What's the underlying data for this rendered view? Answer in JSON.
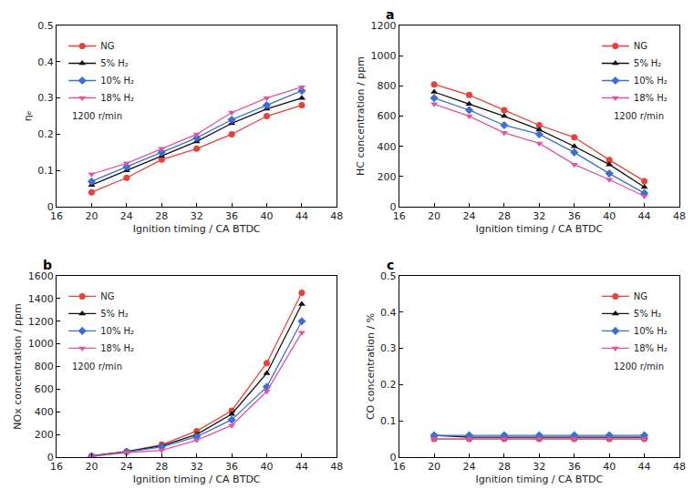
{
  "chart_data": [
    {
      "type": "line",
      "xlabel": "Ignition timing / CA BTDC",
      "ylabel": "ηₑ",
      "annotations": [
        "1200 r/min"
      ],
      "x": [
        20,
        24,
        28,
        32,
        36,
        40,
        44
      ],
      "xlim": [
        16,
        48
      ],
      "xticks": [
        16,
        20,
        24,
        28,
        32,
        36,
        40,
        44,
        48
      ],
      "ylim": [
        0,
        0.5
      ],
      "yticks": [
        0,
        0.1,
        0.2,
        0.3,
        0.4,
        0.5
      ],
      "grid": false,
      "legend": "top-left",
      "series": [
        {
          "name": "NG",
          "color": "#e8413a",
          "marker": "circle",
          "line_style": "solid",
          "values": [
            0.04,
            0.08,
            0.13,
            0.16,
            0.2,
            0.25,
            0.28
          ]
        },
        {
          "name": "5% H₂",
          "color": "#111111",
          "marker": "triangle-up",
          "line_style": "solid",
          "values": [
            0.06,
            0.1,
            0.14,
            0.18,
            0.23,
            0.27,
            0.3
          ]
        },
        {
          "name": "10% H₂",
          "color": "#3a6fd8",
          "marker": "diamond",
          "line_style": "solid",
          "values": [
            0.07,
            0.11,
            0.15,
            0.19,
            0.24,
            0.28,
            0.32
          ]
        },
        {
          "name": "18% H₂",
          "color": "#e055a0",
          "marker": "triangle-down",
          "line_style": "solid",
          "values": [
            0.09,
            0.12,
            0.16,
            0.2,
            0.26,
            0.3,
            0.33
          ]
        }
      ]
    },
    {
      "type": "line",
      "title": "a",
      "xlabel": "Ignition timing / CA BTDC",
      "ylabel": "HC concentration / ppm",
      "annotations": [
        "1200 r/min"
      ],
      "x": [
        20,
        24,
        28,
        32,
        36,
        40,
        44
      ],
      "xlim": [
        16,
        48
      ],
      "xticks": [
        16,
        20,
        24,
        28,
        32,
        36,
        40,
        44,
        48
      ],
      "ylim": [
        0,
        1200
      ],
      "yticks": [
        0,
        200,
        400,
        600,
        800,
        1000,
        1200
      ],
      "grid": false,
      "legend": "top-right",
      "series": [
        {
          "name": "NG",
          "color": "#e8413a",
          "marker": "circle",
          "line_style": "solid",
          "values": [
            810,
            740,
            640,
            540,
            460,
            310,
            170
          ]
        },
        {
          "name": "5% H₂",
          "color": "#111111",
          "marker": "triangle-up",
          "line_style": "solid",
          "values": [
            760,
            680,
            600,
            510,
            400,
            280,
            130
          ]
        },
        {
          "name": "10% H₂",
          "color": "#3a6fd8",
          "marker": "diamond",
          "line_style": "solid",
          "values": [
            720,
            640,
            540,
            480,
            360,
            220,
            90
          ]
        },
        {
          "name": "18% H₂",
          "color": "#e055a0",
          "marker": "triangle-down",
          "line_style": "solid",
          "values": [
            680,
            600,
            490,
            420,
            280,
            180,
            70
          ]
        }
      ]
    },
    {
      "type": "line",
      "title": "b",
      "xlabel": "Ignition timing / CA BTDC",
      "ylabel": "NOx concentration / ppm",
      "annotations": [
        "1200 r/min"
      ],
      "x": [
        20,
        24,
        28,
        32,
        36,
        40,
        44
      ],
      "xlim": [
        16,
        48
      ],
      "xticks": [
        16,
        20,
        24,
        28,
        32,
        36,
        40,
        44,
        48
      ],
      "ylim": [
        0,
        1600
      ],
      "yticks": [
        0,
        200,
        400,
        600,
        800,
        1000,
        1200,
        1400,
        1600
      ],
      "grid": false,
      "legend": "top-left",
      "series": [
        {
          "name": "NG",
          "color": "#e8413a",
          "marker": "circle",
          "line_style": "solid",
          "values": [
            10,
            50,
            110,
            230,
            410,
            830,
            1450
          ]
        },
        {
          "name": "5% H₂",
          "color": "#111111",
          "marker": "triangle-up",
          "line_style": "solid",
          "values": [
            10,
            50,
            100,
            200,
            380,
            740,
            1350
          ]
        },
        {
          "name": "10% H₂",
          "color": "#3a6fd8",
          "marker": "diamond",
          "line_style": "solid",
          "values": [
            8,
            45,
            90,
            180,
            330,
            620,
            1200
          ]
        },
        {
          "name": "18% H₂",
          "color": "#e055a0",
          "marker": "triangle-down",
          "line_style": "solid",
          "values": [
            5,
            40,
            60,
            150,
            280,
            580,
            1100
          ]
        }
      ]
    },
    {
      "type": "line",
      "title": "c",
      "xlabel": "Ignition timing / CA BTDC",
      "ylabel": "CO concentration / %",
      "annotations": [
        "1200 r/min"
      ],
      "x": [
        20,
        24,
        28,
        32,
        36,
        40,
        44
      ],
      "xlim": [
        16,
        48
      ],
      "xticks": [
        16,
        20,
        24,
        28,
        32,
        36,
        40,
        44,
        48
      ],
      "ylim": [
        0,
        0.5
      ],
      "yticks": [
        0,
        0.1,
        0.2,
        0.3,
        0.4,
        0.5
      ],
      "grid": false,
      "legend": "top-right",
      "series": [
        {
          "name": "NG",
          "color": "#e8413a",
          "marker": "circle",
          "line_style": "solid",
          "values": [
            0.05,
            0.05,
            0.05,
            0.05,
            0.05,
            0.05,
            0.05
          ]
        },
        {
          "name": "5% H₂",
          "color": "#111111",
          "marker": "triangle-up",
          "line_style": "solid",
          "values": [
            0.06,
            0.055,
            0.055,
            0.055,
            0.055,
            0.055,
            0.055
          ]
        },
        {
          "name": "10% H₂",
          "color": "#3a6fd8",
          "marker": "diamond",
          "line_style": "solid",
          "values": [
            0.06,
            0.06,
            0.06,
            0.06,
            0.06,
            0.06,
            0.06
          ]
        },
        {
          "name": "18% H₂",
          "color": "#e055a0",
          "marker": "triangle-down",
          "line_style": "solid",
          "values": [
            0.05,
            0.05,
            0.05,
            0.05,
            0.05,
            0.05,
            0.05
          ]
        }
      ]
    }
  ]
}
